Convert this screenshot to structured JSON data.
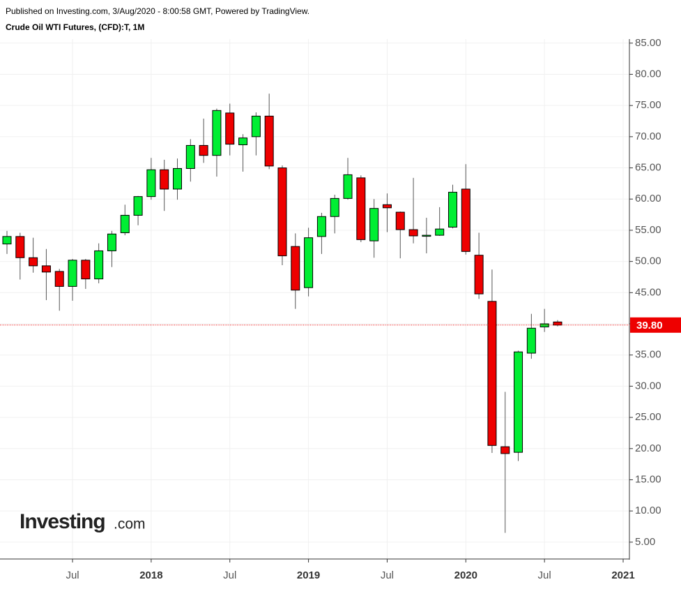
{
  "chart_data": {
    "type": "candlestick",
    "header": "Published on Investing.com, 3/Aug/2020 - 8:00:58 GMT, Powered by TradingView.",
    "title": "Crude Oil WTI Futures, (CFD):T, 1M",
    "logo": "Investing",
    "logo_suffix": ".com",
    "x": [
      "2017-02",
      "2017-03",
      "2017-04",
      "2017-05",
      "2017-06",
      "2017-07",
      "2017-08",
      "2017-09",
      "2017-10",
      "2017-11",
      "2017-12",
      "2018-01",
      "2018-02",
      "2018-03",
      "2018-04",
      "2018-05",
      "2018-06",
      "2018-07",
      "2018-08",
      "2018-09",
      "2018-10",
      "2018-11",
      "2018-12",
      "2019-01",
      "2019-02",
      "2019-03",
      "2019-04",
      "2019-05",
      "2019-06",
      "2019-07",
      "2019-08",
      "2019-09",
      "2019-10",
      "2019-11",
      "2019-12",
      "2020-01",
      "2020-02",
      "2020-03",
      "2020-04",
      "2020-05",
      "2020-06",
      "2020-07",
      "2020-08"
    ],
    "open": [
      52.8,
      54.0,
      50.6,
      49.3,
      48.4,
      46.0,
      50.2,
      47.2,
      51.7,
      54.6,
      57.4,
      60.4,
      64.7,
      61.6,
      64.9,
      68.6,
      67.0,
      73.8,
      68.7,
      70.0,
      73.3,
      65.0,
      52.4,
      45.8,
      54.0,
      57.2,
      60.1,
      63.4,
      53.3,
      59.1,
      57.9,
      55.1,
      54.2,
      54.2,
      55.5,
      61.6,
      51.0,
      43.6,
      20.3,
      19.4,
      35.3,
      39.5,
      40.3
    ],
    "high": [
      54.9,
      54.6,
      53.8,
      52.0,
      48.8,
      50.4,
      50.4,
      52.9,
      54.9,
      59.1,
      60.5,
      66.6,
      66.3,
      66.5,
      69.6,
      72.9,
      74.5,
      75.3,
      70.4,
      73.9,
      76.9,
      65.4,
      54.5,
      55.4,
      57.8,
      60.7,
      66.6,
      63.8,
      60.0,
      60.9,
      58.0,
      63.4,
      57.0,
      58.7,
      62.3,
      65.6,
      54.6,
      48.7,
      29.1,
      35.7,
      41.6,
      42.4,
      40.6
    ],
    "low": [
      51.2,
      47.1,
      48.2,
      43.8,
      42.1,
      43.7,
      45.6,
      46.5,
      49.1,
      54.2,
      55.8,
      59.9,
      58.1,
      59.9,
      62.8,
      65.8,
      63.6,
      67.0,
      64.4,
      67.0,
      64.8,
      49.4,
      42.4,
      44.4,
      51.2,
      54.5,
      59.9,
      53.1,
      50.6,
      54.7,
      50.5,
      52.9,
      51.3,
      54.1,
      55.3,
      51.1,
      44.0,
      19.3,
      6.5,
      18.0,
      34.4,
      38.7,
      39.6
    ],
    "close": [
      54.0,
      50.6,
      49.3,
      48.3,
      46.0,
      50.2,
      47.2,
      51.7,
      54.4,
      57.4,
      60.4,
      64.7,
      61.6,
      64.9,
      68.6,
      67.0,
      74.2,
      68.8,
      69.8,
      73.3,
      65.3,
      50.9,
      45.4,
      53.8,
      57.2,
      60.1,
      63.9,
      53.5,
      58.5,
      58.6,
      55.1,
      54.1,
      54.2,
      55.2,
      61.1,
      51.6,
      44.8,
      20.5,
      19.2,
      35.5,
      39.3,
      40.0,
      39.8
    ],
    "up_color": "#00ee33",
    "down_color": "#ee0000",
    "last_price": {
      "value": 39.8,
      "label": "39.80"
    },
    "last_price_color": "#ee0000",
    "ylim": [
      2.3,
      85.2
    ],
    "yticks": [
      {
        "value": 5,
        "label": "5.00"
      },
      {
        "value": 10,
        "label": "10.00"
      },
      {
        "value": 15,
        "label": "15.00"
      },
      {
        "value": 20,
        "label": "20.00"
      },
      {
        "value": 25,
        "label": "25.00"
      },
      {
        "value": 30,
        "label": "30.00"
      },
      {
        "value": 35,
        "label": "35.00"
      },
      {
        "value": 40,
        "label": "40.00"
      },
      {
        "value": 45,
        "label": "45.00"
      },
      {
        "value": 50,
        "label": "50.00"
      },
      {
        "value": 55,
        "label": "55.00"
      },
      {
        "value": 60,
        "label": "60.00"
      },
      {
        "value": 65,
        "label": "65.00"
      },
      {
        "value": 70,
        "label": "70.00"
      },
      {
        "value": 75,
        "label": "75.00"
      },
      {
        "value": 80,
        "label": "80.00"
      },
      {
        "value": 85,
        "label": "85.00"
      }
    ],
    "xlim": [
      "2017-02",
      "2021-01"
    ],
    "xticks": [
      {
        "value": "2017-07",
        "label": "Jul"
      },
      {
        "value": "2018-01",
        "label": "2018"
      },
      {
        "value": "2018-07",
        "label": "Jul"
      },
      {
        "value": "2019-01",
        "label": "2019"
      },
      {
        "value": "2019-07",
        "label": "Jul"
      },
      {
        "value": "2020-01",
        "label": "2020"
      },
      {
        "value": "2020-07",
        "label": "Jul"
      },
      {
        "value": "2021-01",
        "label": "2021"
      }
    ],
    "grid": true
  }
}
